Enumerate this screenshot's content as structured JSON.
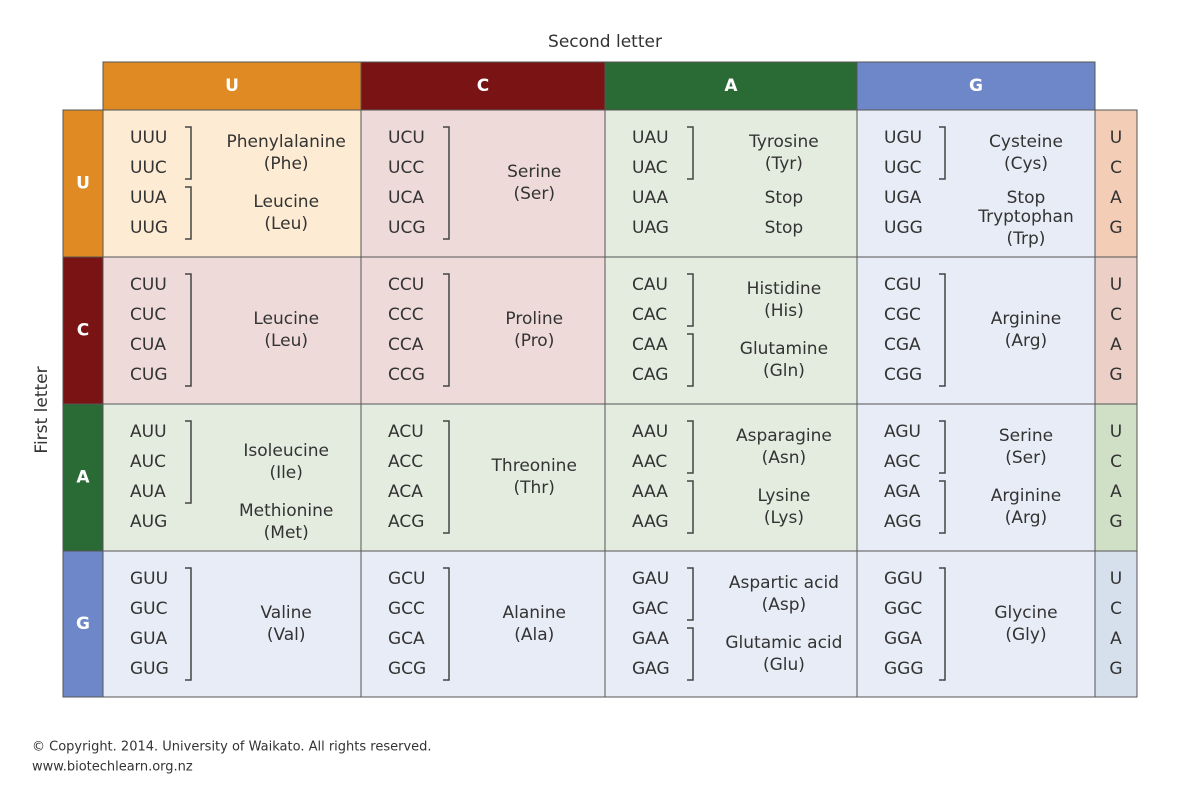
{
  "header": {
    "title": "Second letter",
    "side_title": "First letter"
  },
  "second_letters": [
    "U",
    "C",
    "A",
    "G"
  ],
  "third_letters": [
    "U",
    "C",
    "A",
    "G"
  ],
  "rows": [
    {
      "letter": "U",
      "cells": [
        {
          "groups": [
            {
              "codons": [
                "UUU",
                "UUC"
              ],
              "name": "Phenylalanine",
              "abbr": "(Phe)"
            },
            {
              "codons": [
                "UUA",
                "UUG"
              ],
              "name": "Leucine",
              "abbr": "(Leu)"
            }
          ]
        },
        {
          "groups": [
            {
              "codons": [
                "UCU",
                "UCC",
                "UCA",
                "UCG"
              ],
              "name": "Serine",
              "abbr": "(Ser)"
            }
          ]
        },
        {
          "groups": [
            {
              "codons": [
                "UAU",
                "UAC"
              ],
              "name": "Tyrosine",
              "abbr": "(Tyr)"
            },
            {
              "codons": [
                "UAA"
              ],
              "name": "Stop"
            },
            {
              "codons": [
                "UAG"
              ],
              "name": "Stop"
            }
          ]
        },
        {
          "groups": [
            {
              "codons": [
                "UGU",
                "UGC"
              ],
              "name": "Cysteine",
              "abbr": "(Cys)"
            },
            {
              "codons": [
                "UGA"
              ],
              "name": "Stop"
            },
            {
              "codons": [
                "UGG"
              ],
              "name": "Tryptophan",
              "abbr": "(Trp)"
            }
          ]
        }
      ]
    },
    {
      "letter": "C",
      "cells": [
        {
          "groups": [
            {
              "codons": [
                "CUU",
                "CUC",
                "CUA",
                "CUG"
              ],
              "name": "Leucine",
              "abbr": "(Leu)"
            }
          ]
        },
        {
          "groups": [
            {
              "codons": [
                "CCU",
                "CCC",
                "CCA",
                "CCG"
              ],
              "name": "Proline",
              "abbr": "(Pro)"
            }
          ]
        },
        {
          "groups": [
            {
              "codons": [
                "CAU",
                "CAC"
              ],
              "name": "Histidine",
              "abbr": "(His)"
            },
            {
              "codons": [
                "CAA",
                "CAG"
              ],
              "name": "Glutamine",
              "abbr": "(Gln)"
            }
          ]
        },
        {
          "groups": [
            {
              "codons": [
                "CGU",
                "CGC",
                "CGA",
                "CGG"
              ],
              "name": "Arginine",
              "abbr": "(Arg)"
            }
          ]
        }
      ]
    },
    {
      "letter": "A",
      "cells": [
        {
          "groups": [
            {
              "codons": [
                "AUU",
                "AUC",
                "AUA"
              ],
              "name": "Isoleucine",
              "abbr": "(Ile)"
            },
            {
              "codons": [
                "AUG"
              ],
              "name": "Methionine",
              "abbr": "(Met)"
            }
          ]
        },
        {
          "groups": [
            {
              "codons": [
                "ACU",
                "ACC",
                "ACA",
                "ACG"
              ],
              "name": "Threonine",
              "abbr": "(Thr)"
            }
          ]
        },
        {
          "groups": [
            {
              "codons": [
                "AAU",
                "AAC"
              ],
              "name": "Asparagine",
              "abbr": "(Asn)"
            },
            {
              "codons": [
                "AAA",
                "AAG"
              ],
              "name": "Lysine",
              "abbr": "(Lys)"
            }
          ]
        },
        {
          "groups": [
            {
              "codons": [
                "AGU",
                "AGC"
              ],
              "name": "Serine",
              "abbr": "(Ser)"
            },
            {
              "codons": [
                "AGA",
                "AGG"
              ],
              "name": "Arginine",
              "abbr": "(Arg)"
            }
          ]
        }
      ]
    },
    {
      "letter": "G",
      "cells": [
        {
          "groups": [
            {
              "codons": [
                "GUU",
                "GUC",
                "GUA",
                "GUG"
              ],
              "name": "Valine",
              "abbr": "(Val)"
            }
          ]
        },
        {
          "groups": [
            {
              "codons": [
                "GCU",
                "GCC",
                "GCA",
                "GCG"
              ],
              "name": "Alanine",
              "abbr": "(Ala)"
            }
          ]
        },
        {
          "groups": [
            {
              "codons": [
                "GAU",
                "GAC"
              ],
              "name": "Aspartic acid",
              "abbr": "(Asp)"
            },
            {
              "codons": [
                "GAA",
                "GAG"
              ],
              "name": "Glutamic acid",
              "abbr": "(Glu)"
            }
          ]
        },
        {
          "groups": [
            {
              "codons": [
                "GGU",
                "GGC",
                "GGA",
                "GGG"
              ],
              "name": "Glycine",
              "abbr": "(Gly)"
            }
          ]
        }
      ]
    }
  ],
  "footer": {
    "copyright": "© Copyright. 2014. University of Waikato. All rights reserved.",
    "url": "www.biotechlearn.org.nz"
  }
}
